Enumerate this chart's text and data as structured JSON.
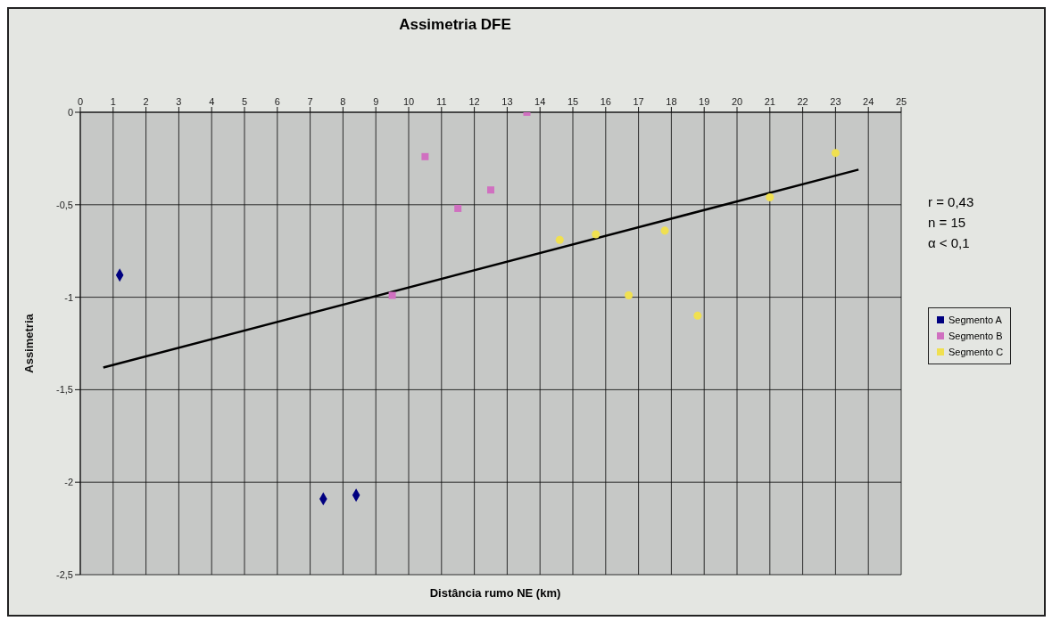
{
  "chart_data": {
    "type": "scatter",
    "title": "Assimetria DFE",
    "xlabel": "Distância rumo NE (km)",
    "ylabel": "Assimetria",
    "xlim": [
      0,
      25
    ],
    "xticks": [
      0,
      1,
      2,
      3,
      4,
      5,
      6,
      7,
      8,
      9,
      10,
      11,
      12,
      13,
      14,
      15,
      16,
      17,
      18,
      19,
      20,
      21,
      22,
      23,
      24,
      25
    ],
    "ylim": [
      -2.5,
      0
    ],
    "yticks": [
      {
        "value": -2.5,
        "label": "-2,5"
      },
      {
        "value": -2,
        "label": "-2"
      },
      {
        "value": -1.5,
        "label": "-1,5"
      },
      {
        "value": -1,
        "label": "-1"
      },
      {
        "value": -0.5,
        "label": "-0,5"
      },
      {
        "value": 0,
        "label": "0"
      }
    ],
    "grid": true,
    "legend": "right",
    "annotations": [
      "r = 0,43",
      "n = 15",
      "α < 0,1"
    ],
    "series": [
      {
        "name": "Segmento A",
        "color": "#000080",
        "marker": "diamond",
        "x": [
          1.2,
          7.4,
          8.4
        ],
        "values": [
          -0.88,
          -2.09,
          -2.07
        ]
      },
      {
        "name": "Segmento B",
        "color": "#d070c0",
        "marker": "square",
        "x": [
          9.5,
          10.5,
          11.5,
          12.5,
          13.6
        ],
        "values": [
          -0.99,
          -0.24,
          -0.52,
          -0.42,
          0
        ]
      },
      {
        "name": "Segmento C",
        "color": "#f0e050",
        "marker": "circle",
        "x": [
          14.6,
          15.7,
          16.7,
          17.8,
          18.8,
          21.0,
          23.0
        ],
        "values": [
          -0.69,
          -0.66,
          -0.99,
          -0.64,
          -1.1,
          -0.46,
          -0.22
        ]
      },
      {
        "type": "line",
        "color": "#000000",
        "marker": "none",
        "x": [
          0.7,
          23.7
        ],
        "values": [
          -1.38,
          -0.31
        ]
      }
    ]
  }
}
